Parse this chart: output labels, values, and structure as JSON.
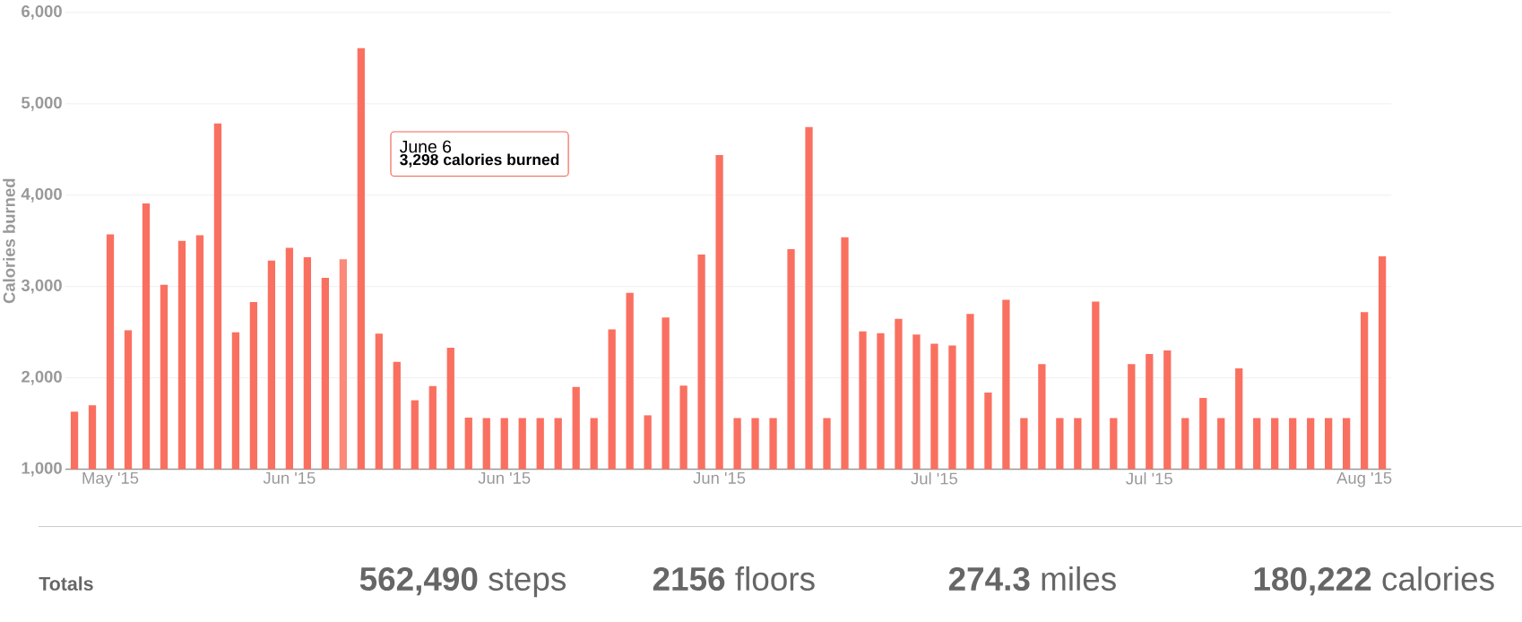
{
  "chart_data": {
    "type": "bar",
    "ylabel": "Calories burned",
    "categories": [
      null,
      null,
      "May '15",
      null,
      null,
      null,
      null,
      null,
      null,
      null,
      null,
      null,
      "Jun '15",
      null,
      null,
      null,
      null,
      null,
      null,
      null,
      null,
      null,
      null,
      null,
      "Jun '15",
      null,
      null,
      null,
      null,
      null,
      null,
      null,
      null,
      null,
      null,
      null,
      "Jun '15",
      null,
      null,
      null,
      null,
      null,
      null,
      null,
      null,
      null,
      null,
      null,
      "Jul '15",
      null,
      null,
      null,
      null,
      null,
      null,
      null,
      null,
      null,
      null,
      null,
      "Jul '15",
      null,
      null,
      null,
      null,
      null,
      null,
      null,
      null,
      null,
      null,
      null,
      "Aug '15",
      null
    ],
    "values": [
      1630,
      1700,
      3570,
      2520,
      3910,
      3020,
      3500,
      3560,
      4785,
      2500,
      2830,
      3285,
      3425,
      3320,
      3095,
      3298,
      5610,
      2485,
      2175,
      1755,
      1910,
      2330,
      1565,
      1560,
      1560,
      1560,
      1560,
      1560,
      1900,
      1560,
      2530,
      2930,
      1590,
      2660,
      1915,
      3350,
      4440,
      1560,
      1560,
      1560,
      3410,
      4745,
      1560,
      3540,
      2510,
      2490,
      2645,
      2475,
      2375,
      2355,
      2700,
      1840,
      2855,
      1560,
      2150,
      1560,
      1560,
      2835,
      1560,
      2150,
      2260,
      2300,
      1560,
      1780,
      1560,
      2105,
      1560,
      1560,
      1560,
      1560,
      1560,
      1560,
      2720,
      3330
    ],
    "colors": [
      "#fa7060",
      "#fa7060",
      "#fa7060",
      "#fa7060",
      "#fa7060",
      "#fa7060",
      "#fa7060",
      "#fa7060",
      "#fa7060",
      "#fa7060",
      "#fa7060",
      "#fa7060",
      "#fa7060",
      "#fa7060",
      "#fa7060",
      "#fb8a7a",
      "#fa7060",
      "#fa7060",
      "#fa7060",
      "#fa7060",
      "#fa7060",
      "#fa7060",
      "#fa7060",
      "#fa7060",
      "#fa7060",
      "#fa7060",
      "#fa7060",
      "#fa7060",
      "#fa7060",
      "#fa7060",
      "#fa7060",
      "#fa7060",
      "#fa7060",
      "#fa7060",
      "#fa7060",
      "#fa7060",
      "#fa7060",
      "#fa7060",
      "#fa7060",
      "#fa7060",
      "#fa7060",
      "#fa7060",
      "#fa7060",
      "#fa7060",
      "#fa7060",
      "#fa7060",
      "#fa7060",
      "#fa7060",
      "#fa7060",
      "#fa7060",
      "#fa7060",
      "#fa7060",
      "#fa7060",
      "#fa7060",
      "#fa7060",
      "#fa7060",
      "#fa7060",
      "#fa7060",
      "#fa7060",
      "#fa7060",
      "#fa7060",
      "#fa7060",
      "#fa7060",
      "#fa7060",
      "#fa7060",
      "#fa7060",
      "#fa7060",
      "#fa7060",
      "#fa7060",
      "#fa7060",
      "#fa7060",
      "#fa7060",
      "#fa7060",
      "#fa7060"
    ],
    "ylim": [
      1000,
      6000
    ],
    "yticks": [
      {
        "value": 1000,
        "label": "1,000"
      },
      {
        "value": 2000,
        "label": "2,000"
      },
      {
        "value": 3000,
        "label": "3,000"
      },
      {
        "value": 4000,
        "label": "4,000"
      },
      {
        "value": 5000,
        "label": "5,000"
      },
      {
        "value": 6000,
        "label": "6,000"
      }
    ],
    "grid": "y",
    "annotations": [
      "June 6",
      "**3,298** calories burned",
      "Totals",
      "**562,490** steps",
      "**2156** floors",
      "**274.3** miles",
      "**180,222** calories"
    ]
  }
}
